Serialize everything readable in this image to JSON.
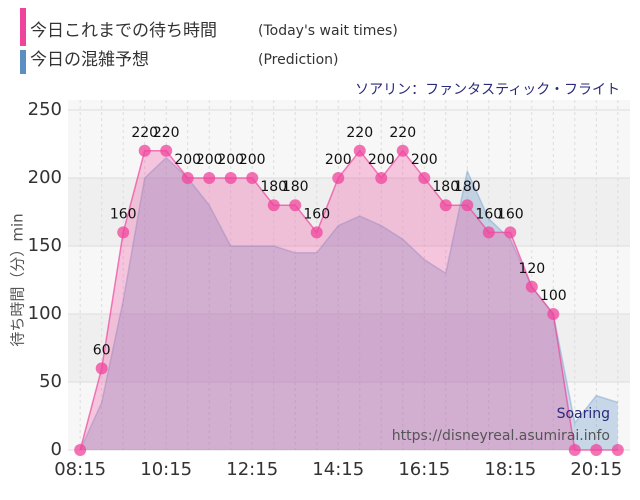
{
  "chart_data": {
    "type": "area",
    "subtitle": "ソアリン：ファンタスティック・フライト",
    "y_label": "待ち時間（分）min",
    "annotations": [
      "Soaring",
      "https://disneyreal.asumirai.info"
    ],
    "x": [
      495,
      525,
      555,
      585,
      615,
      645,
      675,
      705,
      735,
      765,
      795,
      825,
      855,
      885,
      915,
      945,
      975,
      1005,
      1035,
      1065,
      1095,
      1125,
      1155,
      1185,
      1215,
      1245
    ],
    "series": [
      {
        "name": "今日の混雑予想",
        "note": "(Prediction)",
        "color": "#5b8fc2",
        "values": [
          0,
          35,
          110,
          200,
          215,
          200,
          180,
          150,
          150,
          150,
          145,
          145,
          165,
          172,
          165,
          155,
          140,
          130,
          205,
          170,
          155,
          120,
          100,
          20,
          40,
          35
        ]
      },
      {
        "name": "今日これまでの待ち時間",
        "note": "(Today's wait times)",
        "color": "#f0449c",
        "values": [
          0,
          60,
          160,
          220,
          220,
          200,
          200,
          200,
          200,
          180,
          180,
          160,
          200,
          220,
          200,
          220,
          200,
          180,
          180,
          160,
          160,
          120,
          100,
          0,
          0,
          0
        ]
      }
    ],
    "xlim": [
      478,
      1262
    ],
    "xticks": [
      {
        "value": 495,
        "label": "08:15"
      },
      {
        "value": 615,
        "label": "10:15"
      },
      {
        "value": 735,
        "label": "12:15"
      },
      {
        "value": 855,
        "label": "14:15"
      },
      {
        "value": 975,
        "label": "16:15"
      },
      {
        "value": 1095,
        "label": "18:15"
      },
      {
        "value": 1215,
        "label": "20:15"
      }
    ],
    "ylim": [
      0,
      250
    ],
    "yticks": [
      0,
      50,
      100,
      150,
      200,
      250
    ],
    "grid": true
  }
}
